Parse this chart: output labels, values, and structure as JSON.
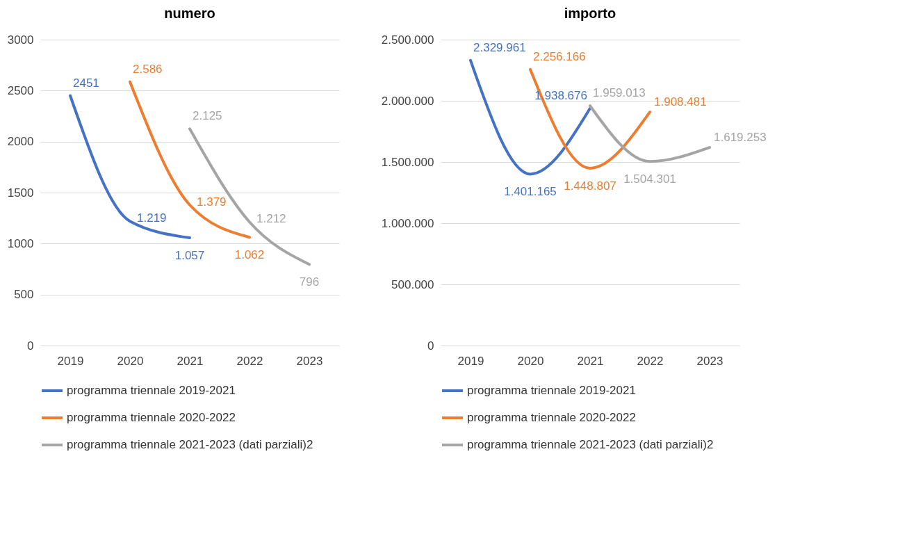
{
  "chart_data": [
    {
      "type": "line",
      "title": "numero",
      "categories": [
        "2019",
        "2020",
        "2021",
        "2022",
        "2023"
      ],
      "ylim": [
        0,
        3000
      ],
      "yticks": [
        0,
        500,
        1000,
        1500,
        2000,
        2500,
        3000
      ],
      "grid": "y",
      "legend": "bottom",
      "series": [
        {
          "name": "programma triennale 2019-2021",
          "color": "#4472c4",
          "values": [
            2451,
            1219,
            1057,
            null,
            null
          ],
          "value_labels": [
            "2451",
            "1.219",
            "1.057",
            null,
            null
          ]
        },
        {
          "name": "programma triennale 2020-2022",
          "color": "#ed7d31",
          "values": [
            null,
            2586,
            1379,
            1062,
            null
          ],
          "value_labels": [
            null,
            "2.586",
            "1.379",
            "1.062",
            null
          ]
        },
        {
          "name": "programma triennale 2021-2023 (dati parziali)2",
          "color": "#a5a5a5",
          "values": [
            null,
            null,
            2125,
            1212,
            796
          ],
          "value_labels": [
            null,
            null,
            "2.125",
            "1.212",
            "796"
          ]
        }
      ]
    },
    {
      "type": "line",
      "title": "importo",
      "categories": [
        "2019",
        "2020",
        "2021",
        "2022",
        "2023"
      ],
      "ylim": [
        0,
        2500000
      ],
      "yticks": [
        {
          "value": 0,
          "label": "0"
        },
        {
          "value": 500000,
          "label": "500.000"
        },
        {
          "value": 1000000,
          "label": "1.000.000"
        },
        {
          "value": 1500000,
          "label": "1.500.000"
        },
        {
          "value": 2000000,
          "label": "2.000.000"
        },
        {
          "value": 2500000,
          "label": "2.500.000"
        }
      ],
      "grid": "y",
      "legend": "bottom",
      "series": [
        {
          "name": "programma triennale 2019-2021",
          "color": "#4472c4",
          "values": [
            2329961,
            1401165,
            1938676,
            null,
            null
          ],
          "value_labels": [
            "2.329.961",
            "1.401.165",
            "1.938.676",
            null,
            null
          ]
        },
        {
          "name": "programma triennale 2020-2022",
          "color": "#ed7d31",
          "values": [
            null,
            2256166,
            1448807,
            1908481,
            null
          ],
          "value_labels": [
            null,
            "2.256.166",
            "1.448.807",
            "1.908.481",
            null
          ]
        },
        {
          "name": "programma triennale 2021-2023 (dati parziali)2",
          "color": "#a5a5a5",
          "values": [
            null,
            null,
            1959013,
            1504301,
            1619253
          ],
          "value_labels": [
            null,
            null,
            "1.959.013",
            "1.504.301",
            "1.619.253"
          ]
        }
      ]
    }
  ]
}
